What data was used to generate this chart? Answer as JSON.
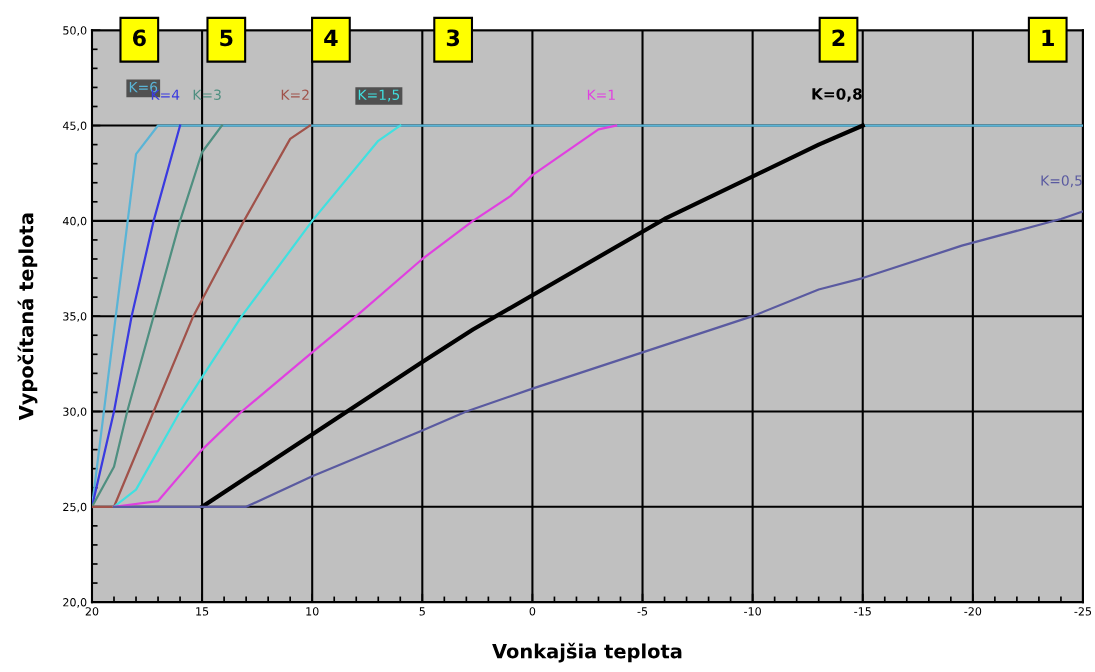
{
  "chart_data": {
    "type": "line",
    "xlabel": "Vonkajšia teplota",
    "ylabel": "Vypočítaná teplota",
    "xlim": [
      20,
      -25
    ],
    "ylim": [
      20,
      50
    ],
    "xticks": [
      20,
      15,
      10,
      5,
      0,
      -5,
      -10,
      -15,
      -20,
      -25
    ],
    "yticks": [
      {
        "value": 20,
        "label": "20,0"
      },
      {
        "value": 25,
        "label": "25,0"
      },
      {
        "value": 30,
        "label": "30,0"
      },
      {
        "value": 35,
        "label": "35,0"
      },
      {
        "value": 40,
        "label": "40,0"
      },
      {
        "value": 45,
        "label": "45,0"
      },
      {
        "value": 50,
        "label": "50,0"
      }
    ],
    "grid": true,
    "marker": "none",
    "line_style": "solid",
    "series": [
      {
        "name": "K=6",
        "color": "#5ab4d6",
        "x": [
          20,
          18,
          17,
          -25
        ],
        "values": [
          25,
          43.5,
          45,
          45
        ]
      },
      {
        "name": "K=4",
        "color": "#3a3ae0",
        "x": [
          20,
          19,
          18.2,
          17.2,
          16
        ],
        "values": [
          25,
          30,
          35,
          40,
          45
        ]
      },
      {
        "name": "K=3",
        "color": "#4f8f80",
        "x": [
          20,
          19,
          18.4,
          17.2,
          16,
          15,
          14.1
        ],
        "values": [
          25,
          27.1,
          30,
          35,
          40,
          43.6,
          45
        ]
      },
      {
        "name": "K=2",
        "color": "#a0524a",
        "x": [
          20,
          19,
          17.2,
          15.4,
          13.1,
          11,
          10.1
        ],
        "values": [
          25,
          25,
          30,
          35,
          40,
          44.3,
          45
        ]
      },
      {
        "name": "K=1,5",
        "color": "#40e0e0",
        "x": [
          19,
          18,
          16,
          15,
          13.2,
          10,
          7,
          6
        ],
        "values": [
          25,
          25.9,
          30,
          31.8,
          35,
          40,
          44.2,
          45
        ]
      },
      {
        "name": "K=1",
        "color": "#e040e0",
        "x": [
          19,
          17,
          15,
          13.2,
          10,
          8,
          5,
          2.7,
          1,
          0,
          -3,
          -3.8
        ],
        "values": [
          25,
          25.3,
          28,
          30,
          33.1,
          35,
          38,
          40,
          41.3,
          42.4,
          44.8,
          45
        ]
      },
      {
        "name": "K=0,8",
        "color": "#000000",
        "x": [
          15,
          5,
          2.7,
          -6,
          -13,
          -15
        ],
        "values": [
          25,
          32.6,
          34.3,
          40.1,
          44,
          45
        ]
      },
      {
        "name": "K=0,5",
        "color": "#5a5aa0",
        "x": [
          19,
          13,
          10,
          5,
          3,
          0,
          -5,
          -10,
          -13,
          -15,
          -19.5,
          -24,
          -25
        ],
        "values": [
          25,
          25,
          26.6,
          29,
          30,
          31.2,
          33.1,
          35,
          36.4,
          37,
          38.7,
          40.1,
          40.5
        ]
      }
    ],
    "annotations": [
      {
        "text": "6",
        "x": 17.85,
        "y": 49.5
      },
      {
        "text": "5",
        "x": 13.9,
        "y": 49.5
      },
      {
        "text": "4",
        "x": 9.15,
        "y": 49.5
      },
      {
        "text": "3",
        "x": 3.6,
        "y": 49.5
      },
      {
        "text": "2",
        "x": -13.9,
        "y": 49.5
      },
      {
        "text": "1",
        "x": -23.4,
        "y": 49.5
      }
    ]
  }
}
